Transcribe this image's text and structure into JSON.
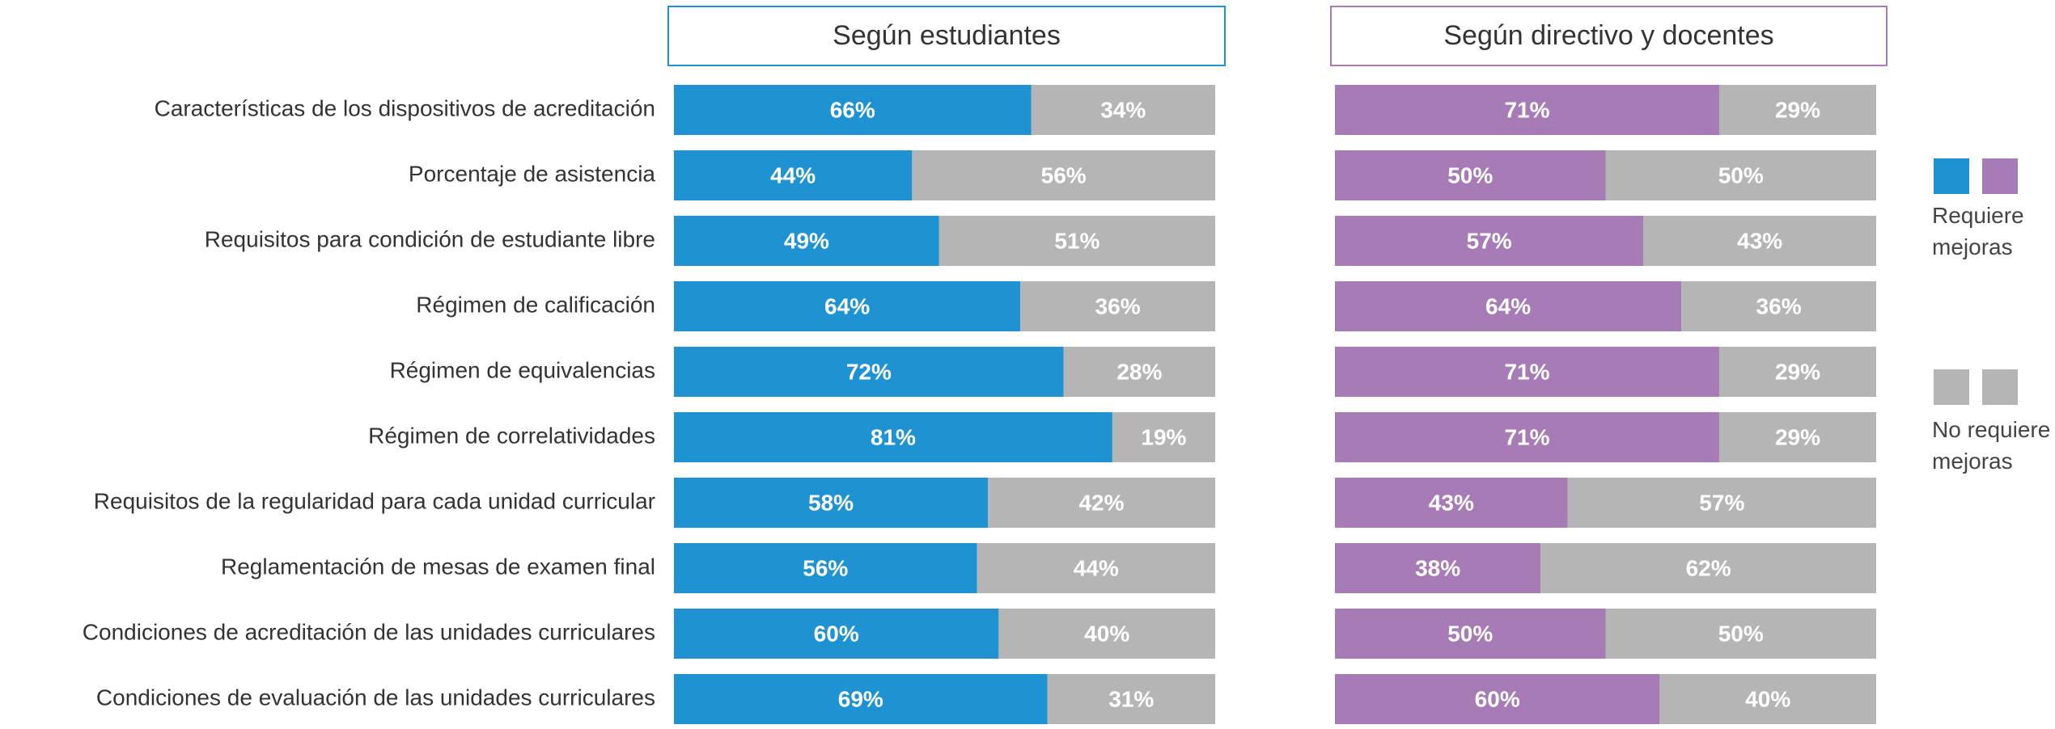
{
  "chart_data": [
    {
      "type": "stacked-bar-horizontal",
      "title": "Según estudiantes",
      "categories": [
        "Características de los dispositivos de acreditación",
        "Porcentaje de asistencia",
        "Requisitos para condición de estudiante libre",
        "Régimen de calificación",
        "Régimen de equivalencias",
        "Régimen de correlatividades",
        "Requisitos de la regularidad para cada unidad curricular",
        "Reglamentación de mesas de examen final",
        "Condiciones de acreditación de las unidades curriculares",
        "Condiciones de evaluación de las unidades curriculares"
      ],
      "xlim": [
        0,
        100
      ],
      "series": [
        {
          "name": "Requiere mejoras",
          "color": "#1f93d2",
          "values": [
            66,
            44,
            49,
            64,
            72,
            81,
            58,
            56,
            60,
            69
          ],
          "value_labels": [
            "66%",
            "44%",
            "49%",
            "64%",
            "72%",
            "81%",
            "58%",
            "56%",
            "60%",
            "69%"
          ]
        },
        {
          "name": "No requiere mejoras",
          "color": "#b5b5b5",
          "values": [
            34,
            56,
            51,
            36,
            28,
            19,
            42,
            44,
            40,
            31
          ],
          "value_labels": [
            "34%",
            "56%",
            "51%",
            "36%",
            "28%",
            "19%",
            "42%",
            "44%",
            "40%",
            "31%"
          ]
        }
      ]
    },
    {
      "type": "stacked-bar-horizontal",
      "title": "Según directivo y docentes",
      "xlim": [
        0,
        100
      ],
      "series": [
        {
          "color": "#a77bb5",
          "values": [
            71,
            50,
            57,
            64,
            71,
            71,
            43,
            38,
            50,
            60
          ],
          "value_labels": [
            "71%",
            "50%",
            "57%",
            "64%",
            "71%",
            "71%",
            "43%",
            "38%",
            "50%",
            "60%"
          ]
        },
        {
          "color": "#b5b5b5",
          "values": [
            29,
            50,
            43,
            36,
            29,
            29,
            57,
            62,
            50,
            40
          ],
          "value_labels": [
            "29%",
            "50%",
            "43%",
            "36%",
            "29%",
            "29%",
            "57%",
            "62%",
            "50%",
            "40%"
          ]
        }
      ]
    }
  ]
}
